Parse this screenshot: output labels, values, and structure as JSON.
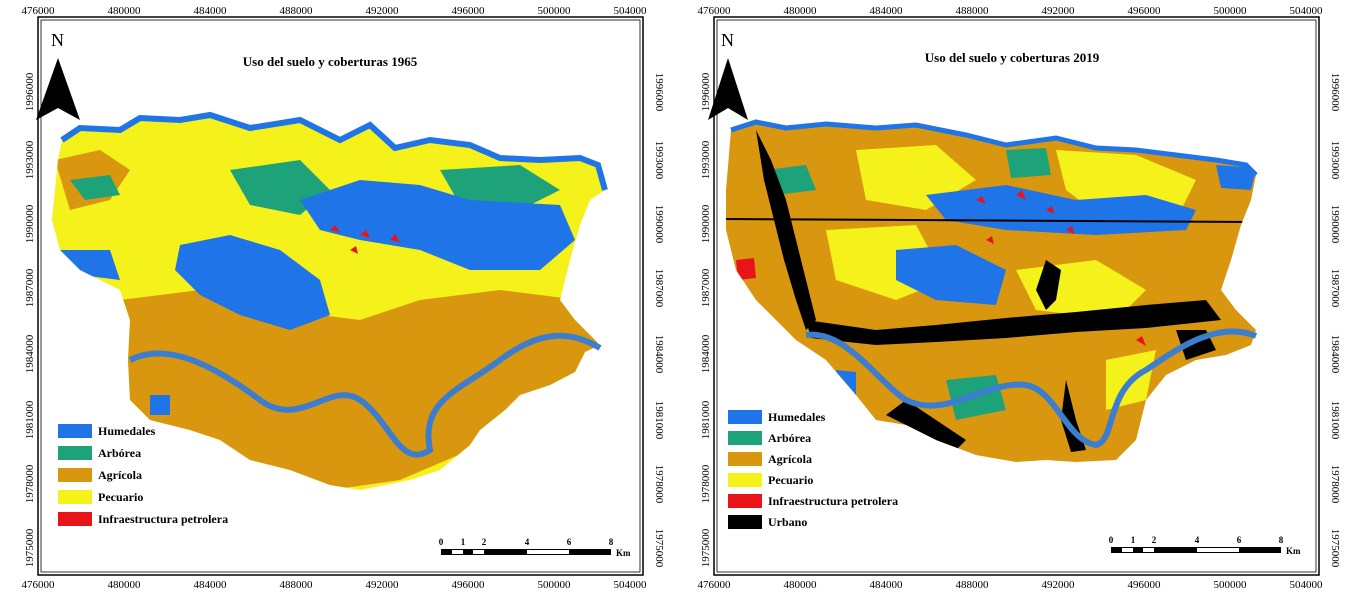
{
  "axes": {
    "x_ticks": [
      "476000",
      "480000",
      "484000",
      "488000",
      "492000",
      "496000",
      "500000",
      "504000"
    ],
    "y_ticks": [
      "1996000",
      "1993000",
      "1990000",
      "1987000",
      "1984000",
      "1981000",
      "1978000",
      "1975000"
    ]
  },
  "colors": {
    "humedales": "#1f74e8",
    "arborea": "#1ea27a",
    "agricola": "#d9960f",
    "pecuario": "#f4f21a",
    "infraestructura": "#e8141a",
    "urbano": "#000000",
    "river": "#3b7ed0"
  },
  "maps": [
    {
      "title": "Uso del suelo y coberturas 1965",
      "north_label": "N",
      "legend": [
        "Humedales",
        "Arbórea",
        "Agrícola",
        "Pecuario",
        "Infraestructura petrolera"
      ],
      "scalebar": {
        "labels": [
          "0",
          "1",
          "2",
          "4",
          "6",
          "8"
        ],
        "unit": "Km"
      }
    },
    {
      "title": "Uso del suelo y coberturas 2019",
      "north_label": "N",
      "legend": [
        "Humedales",
        "Arbórea",
        "Agrícola",
        "Pecuario",
        "Infraestructura petrolera",
        "Urbano"
      ],
      "scalebar": {
        "labels": [
          "0",
          "1",
          "2",
          "4",
          "6",
          "8"
        ],
        "unit": "Km"
      }
    }
  ]
}
